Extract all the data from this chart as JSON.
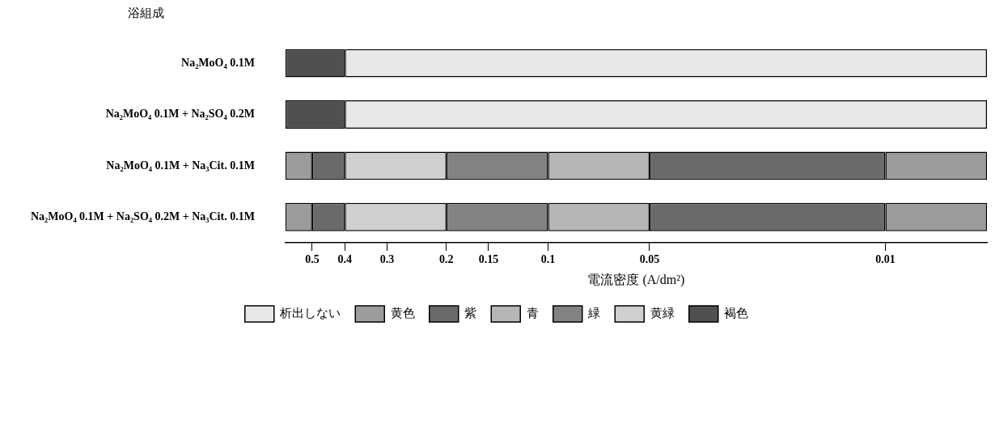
{
  "chart_data": {
    "type": "bar",
    "orientation": "horizontal",
    "ylabel": "浴組成",
    "xlabel": "電流密度 (A/dm²)",
    "categories": [
      "Na₂MoO₄ 0.1M",
      "Na₂MoO₄ 0.1M + Na₂SO₄ 0.2M",
      "Na₂MoO₄ 0.1M + Na₃Cit. 0.1M",
      "Na₂MoO₄ 0.1M + Na₂SO₄ 0.2M + Na₃Cit. 0.1M"
    ],
    "log": "x",
    "xlim": [
      0.6,
      0.005
    ],
    "xticks": [
      0.5,
      0.4,
      0.3,
      0.2,
      0.15,
      0.1,
      0.05,
      0.01
    ],
    "series": [
      {
        "name": "析出しない",
        "color": "#e8e8e8",
        "base": [
          0.005,
          0.005,
          null,
          null
        ],
        "values": [
          0.395,
          0.395,
          null,
          null
        ]
      },
      {
        "name": "黄色",
        "color": "#9c9c9c",
        "base": [
          null,
          null,
          0.5,
          0.5
        ],
        "values": [
          null,
          null,
          0.1,
          0.1
        ]
      },
      {
        "name": "紫",
        "color": "#6a6a6a",
        "base": [
          null,
          null,
          0.4,
          0.4
        ],
        "values": [
          null,
          null,
          0.1,
          0.1
        ]
      },
      {
        "name": "青",
        "color": "#b6b6b6",
        "base": [
          null,
          null,
          0.05,
          0.05
        ],
        "values": [
          null,
          null,
          0.05,
          0.05
        ]
      },
      {
        "name": "緑",
        "color": "#828282",
        "base": [
          null,
          null,
          0.1,
          0.1
        ],
        "values": [
          null,
          null,
          0.1,
          0.1
        ]
      },
      {
        "name": "黄緑",
        "color": "#cfcfcf",
        "base": [
          null,
          null,
          0.2,
          0.2
        ],
        "values": [
          null,
          null,
          0.2,
          0.2
        ]
      },
      {
        "name": "褐色",
        "color": "#505050",
        "base": [
          0.4,
          0.4,
          null,
          null
        ],
        "values": [
          0.2,
          0.2,
          null,
          null
        ]
      },
      {
        "color": "#6a6a6a",
        "base": [
          null,
          null,
          0.01,
          0.01
        ],
        "values": [
          null,
          null,
          0.04,
          0.04
        ]
      },
      {
        "color": "#9c9c9c",
        "base": [
          null,
          null,
          0.005,
          0.005
        ],
        "values": [
          null,
          null,
          0.005,
          0.005
        ]
      }
    ],
    "grid": false,
    "legend": "bottom"
  }
}
